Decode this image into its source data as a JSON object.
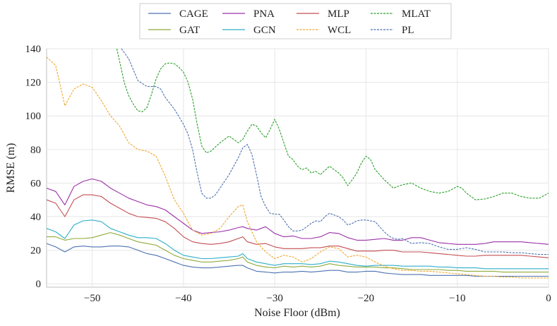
{
  "chart_data": {
    "type": "line",
    "title": "",
    "xlabel": "Noise Floor (dBm)",
    "ylabel": "RMSE (m)",
    "xlim": [
      -55,
      0
    ],
    "ylim": [
      -2,
      140
    ],
    "xticks": [
      -50,
      -40,
      -30,
      -20,
      -10,
      0
    ],
    "xtick_labels": [
      "−50",
      "−40",
      "−30",
      "−20",
      "−10",
      "0"
    ],
    "yticks": [
      0,
      20,
      40,
      60,
      80,
      100,
      120,
      140
    ],
    "ytick_labels": [
      "0",
      "20",
      "40",
      "60",
      "80",
      "100",
      "120",
      "140"
    ],
    "grid": true,
    "legend_position": "top-center",
    "series": [
      {
        "name": "CAGE",
        "color": "#4c72b0",
        "dashed": false,
        "x": [
          -55,
          -54,
          -53,
          -52,
          -51,
          -50,
          -49,
          -48,
          -47,
          -46,
          -45,
          -44,
          -43,
          -42,
          -41,
          -40,
          -39,
          -38,
          -37,
          -36,
          -35,
          -34,
          -33.5,
          -33,
          -32,
          -31,
          -30,
          -29,
          -28,
          -27,
          -26,
          -25,
          -24,
          -23,
          -22,
          -21,
          -20,
          -19,
          -18,
          -17,
          -16,
          -15,
          -14,
          -13,
          -12,
          -11,
          -10,
          -9,
          -8,
          -7,
          -6,
          -5,
          -4,
          -3,
          -2,
          -1,
          0
        ],
        "y": [
          24,
          22,
          19,
          22,
          22.5,
          22,
          22,
          22.5,
          22.5,
          22,
          20,
          18,
          17,
          15,
          13,
          11,
          10,
          9.5,
          9.5,
          10,
          10.5,
          11,
          11,
          9.5,
          7.5,
          7,
          6.5,
          7,
          7,
          7.5,
          7,
          7.5,
          8,
          8,
          7,
          7,
          7.5,
          7.5,
          6.5,
          6,
          5.5,
          5.5,
          5.5,
          5,
          5,
          5,
          5,
          5,
          4.5,
          4.5,
          4.5,
          4.5,
          4.5,
          4.5,
          4.5,
          4.5,
          4.5
        ]
      },
      {
        "name": "GAT",
        "color": "#8faa3a",
        "dashed": false,
        "x": [
          -55,
          -54,
          -53,
          -52,
          -51,
          -50,
          -49,
          -48,
          -47,
          -46,
          -45,
          -44,
          -43,
          -42,
          -41,
          -40,
          -39,
          -38,
          -37,
          -36,
          -35,
          -34,
          -33.5,
          -33,
          -32,
          -31,
          -30,
          -29,
          -28,
          -27,
          -26,
          -25,
          -24,
          -23,
          -22,
          -21,
          -20,
          -19,
          -18,
          -17,
          -16,
          -15,
          -14,
          -13,
          -12,
          -11,
          -10,
          -9,
          -8,
          -7,
          -6,
          -5,
          -4,
          -3,
          -2,
          -1,
          0
        ],
        "y": [
          28,
          28,
          26,
          27,
          27,
          27.5,
          29,
          30.5,
          29,
          27,
          25,
          24,
          23,
          20,
          17,
          15,
          14,
          13,
          13,
          13.5,
          14,
          15,
          16,
          13,
          11,
          10,
          9.5,
          10.5,
          10,
          10.5,
          10,
          10.5,
          12,
          11,
          10.5,
          10,
          10,
          10,
          9.5,
          9.5,
          9,
          8.5,
          8.5,
          8.5,
          8.5,
          8,
          8,
          7.5,
          7.5,
          7.5,
          7.5,
          7,
          7,
          7,
          7,
          7,
          7
        ]
      },
      {
        "name": "PNA",
        "color": "#9b30a8",
        "dashed": false,
        "x": [
          -55,
          -54,
          -53,
          -52,
          -51,
          -50,
          -49,
          -48,
          -47,
          -46,
          -45,
          -44,
          -43,
          -42,
          -41,
          -40,
          -39,
          -38,
          -37,
          -36,
          -35,
          -34,
          -33.5,
          -33,
          -32,
          -31,
          -30,
          -29,
          -28,
          -27,
          -26,
          -25,
          -24,
          -23,
          -22,
          -21,
          -20,
          -19,
          -18,
          -17,
          -16,
          -15,
          -14,
          -13,
          -12,
          -11,
          -10,
          -9,
          -8,
          -7,
          -6,
          -5,
          -4,
          -3,
          -2,
          -1,
          0
        ],
        "y": [
          57,
          55,
          47,
          58,
          61,
          62.5,
          61,
          57,
          54,
          51,
          49,
          47,
          46,
          44,
          40,
          36,
          32,
          30,
          30.5,
          31,
          32,
          33.5,
          34,
          33,
          32,
          34,
          30,
          28,
          28.5,
          27,
          27,
          28,
          30.5,
          30,
          27.5,
          26,
          26,
          26.5,
          27,
          26,
          26,
          27.5,
          27.5,
          26,
          24.5,
          24,
          23.5,
          23.5,
          23.5,
          24,
          25,
          25,
          25,
          25,
          24.5,
          24,
          23.5
        ]
      },
      {
        "name": "GCN",
        "color": "#2eaec8",
        "dashed": false,
        "x": [
          -55,
          -54,
          -53,
          -52,
          -51,
          -50,
          -49,
          -48,
          -47,
          -46,
          -45,
          -44,
          -43,
          -42,
          -41,
          -40,
          -39,
          -38,
          -37,
          -36,
          -35,
          -34,
          -33.5,
          -33,
          -32,
          -31,
          -30,
          -29,
          -28,
          -27,
          -26,
          -25,
          -24,
          -23,
          -22,
          -21,
          -20,
          -19,
          -18,
          -17,
          -16,
          -15,
          -14,
          -13,
          -12,
          -11,
          -10,
          -9,
          -8,
          -7,
          -6,
          -5,
          -4,
          -3,
          -2,
          -1,
          0
        ],
        "y": [
          33,
          31,
          27,
          35,
          37.5,
          38,
          37,
          33,
          31,
          29,
          27.5,
          27.5,
          27,
          24,
          20,
          17,
          16,
          15,
          15,
          15.5,
          16,
          16.5,
          18,
          15,
          13,
          12,
          11,
          12,
          12,
          12,
          11.5,
          12,
          13.5,
          13,
          12,
          11,
          10.5,
          11,
          11,
          11,
          10.5,
          10.5,
          10.5,
          10.5,
          10,
          10,
          9.5,
          9.5,
          9.5,
          9,
          9,
          9,
          9,
          9,
          9,
          9,
          9
        ]
      },
      {
        "name": "MLP",
        "color": "#c44e52",
        "dashed": false,
        "x": [
          -55,
          -54,
          -53,
          -52,
          -51,
          -50,
          -49,
          -48,
          -47,
          -46,
          -45,
          -44,
          -43,
          -42,
          -41,
          -40,
          -39,
          -38,
          -37,
          -36,
          -35,
          -34,
          -33.5,
          -33,
          -32,
          -31,
          -30,
          -29,
          -28,
          -27,
          -26,
          -25,
          -24,
          -23,
          -22,
          -21,
          -20,
          -19,
          -18,
          -17,
          -16,
          -15,
          -14,
          -13,
          -12,
          -11,
          -10,
          -9,
          -8,
          -7,
          -6,
          -5,
          -4,
          -3,
          -2,
          -1,
          0
        ],
        "y": [
          50,
          48,
          40,
          50,
          53,
          53,
          52,
          48,
          45,
          42,
          40,
          39.5,
          39,
          37,
          33,
          28,
          25,
          24,
          23.5,
          24,
          25,
          27,
          28,
          25,
          23.5,
          24,
          22,
          21,
          21,
          21,
          21.5,
          21.5,
          22.5,
          22.5,
          21,
          19.5,
          19.5,
          19.5,
          20,
          20,
          19,
          19,
          19,
          18.5,
          18,
          17.5,
          17,
          16.5,
          16.5,
          17,
          17,
          17,
          17,
          17,
          16.5,
          16,
          15.5
        ]
      },
      {
        "name": "WCL",
        "color": "#f0a830",
        "dashed": true,
        "x": [
          -55,
          -54,
          -53,
          -52,
          -51,
          -50,
          -49,
          -48,
          -47,
          -46,
          -45,
          -44,
          -43,
          -42,
          -41,
          -40,
          -39,
          -38,
          -37,
          -36,
          -35,
          -34,
          -33.5,
          -33,
          -32,
          -31,
          -30,
          -29,
          -28,
          -27,
          -26,
          -25,
          -24,
          -23,
          -22,
          -21,
          -20,
          -19,
          -18,
          -17,
          -16,
          -15,
          -14,
          -13,
          -12,
          -11,
          -10,
          -9,
          -8,
          -7,
          -6,
          -5,
          -4,
          -3,
          -2,
          -1,
          0
        ],
        "y": [
          135,
          130,
          106,
          116,
          119,
          117,
          109,
          100,
          94,
          84,
          80,
          79,
          76,
          64,
          50,
          42,
          32,
          29,
          30,
          33,
          40,
          46,
          47,
          37,
          25,
          19,
          15,
          17,
          16,
          13,
          15,
          19,
          22,
          21,
          16,
          17,
          16,
          13,
          10.5,
          9,
          8,
          8,
          7.5,
          7.5,
          7,
          6.5,
          6,
          5.5,
          5,
          4.5,
          4.5,
          4,
          4,
          3.5,
          3.5,
          3.5,
          3.5
        ]
      },
      {
        "name": "MLAT",
        "color": "#2ca02c",
        "dashed": true,
        "x": [
          -47.3,
          -46.5,
          -46,
          -45.5,
          -45,
          -44.5,
          -44,
          -43.5,
          -43,
          -42.5,
          -42,
          -41.5,
          -41,
          -40.5,
          -40,
          -39.5,
          -39,
          -38.5,
          -38,
          -37.5,
          -37,
          -36,
          -35,
          -34,
          -33.5,
          -33,
          -32.5,
          -32,
          -31.5,
          -31,
          -30.5,
          -30,
          -29.5,
          -29,
          -28.5,
          -28,
          -27.5,
          -27,
          -26.5,
          -26,
          -25.5,
          -25,
          -24,
          -23,
          -22.5,
          -22,
          -21.5,
          -21,
          -20.5,
          -20,
          -19.5,
          -19,
          -18,
          -17,
          -16,
          -15,
          -14,
          -13,
          -12,
          -11,
          -10,
          -9.5,
          -9,
          -8,
          -7,
          -6,
          -5,
          -4,
          -3,
          -2,
          -1,
          0
        ],
        "y": [
          140,
          120,
          112,
          107,
          103,
          102.5,
          105,
          113,
          122,
          128,
          131,
          131.5,
          131,
          129,
          126,
          120,
          110,
          95,
          82,
          78,
          79,
          84,
          88,
          84,
          86,
          91,
          95,
          94,
          90,
          87,
          92,
          98,
          92,
          84,
          76,
          74,
          70,
          68,
          69,
          66,
          67,
          65,
          70,
          66,
          63,
          58.5,
          62,
          66,
          72,
          76,
          74,
          68,
          62,
          57,
          59,
          60,
          57,
          55,
          54,
          55,
          58,
          57,
          54,
          50,
          50.5,
          52,
          54,
          54,
          52,
          51,
          51,
          54
        ]
      },
      {
        "name": "PL",
        "color": "#4c72b0",
        "dashed": true,
        "x": [
          -46.8,
          -46,
          -45,
          -44,
          -43,
          -42.5,
          -42,
          -41,
          -40,
          -39.5,
          -39,
          -38.5,
          -38,
          -37.5,
          -37,
          -36.5,
          -36,
          -35,
          -34,
          -33.5,
          -33,
          -32.5,
          -32,
          -31.5,
          -31,
          -30.5,
          -30,
          -29.5,
          -29,
          -28.5,
          -28,
          -27.5,
          -27,
          -26.5,
          -26,
          -25.5,
          -25,
          -24.5,
          -24,
          -23.5,
          -23,
          -22.5,
          -22,
          -21.5,
          -21,
          -20.5,
          -20,
          -19.5,
          -19,
          -18.5,
          -18,
          -17.5,
          -17,
          -16.5,
          -16,
          -15,
          -14,
          -13,
          -12,
          -11,
          -10,
          -9,
          -8,
          -7,
          -6,
          -5,
          -4,
          -3,
          -2,
          -1,
          0
        ],
        "y": [
          140,
          134,
          121,
          117.5,
          117.5,
          116,
          111,
          104,
          95,
          89,
          80,
          66,
          54,
          51,
          51,
          53,
          57,
          65,
          75,
          81,
          83,
          77,
          65,
          52,
          46,
          42,
          41.5,
          41.5,
          38,
          34,
          31.5,
          31.5,
          32,
          34,
          36,
          37.5,
          37,
          40,
          42,
          41,
          40,
          38,
          35,
          36,
          37.5,
          38,
          38,
          37.5,
          37,
          34,
          31,
          28.5,
          27,
          26.5,
          27,
          24,
          24.5,
          24,
          22,
          20.5,
          20.5,
          21.5,
          20.5,
          19,
          19,
          19,
          18.5,
          18.5,
          18,
          17.5,
          17.5
        ]
      }
    ]
  }
}
